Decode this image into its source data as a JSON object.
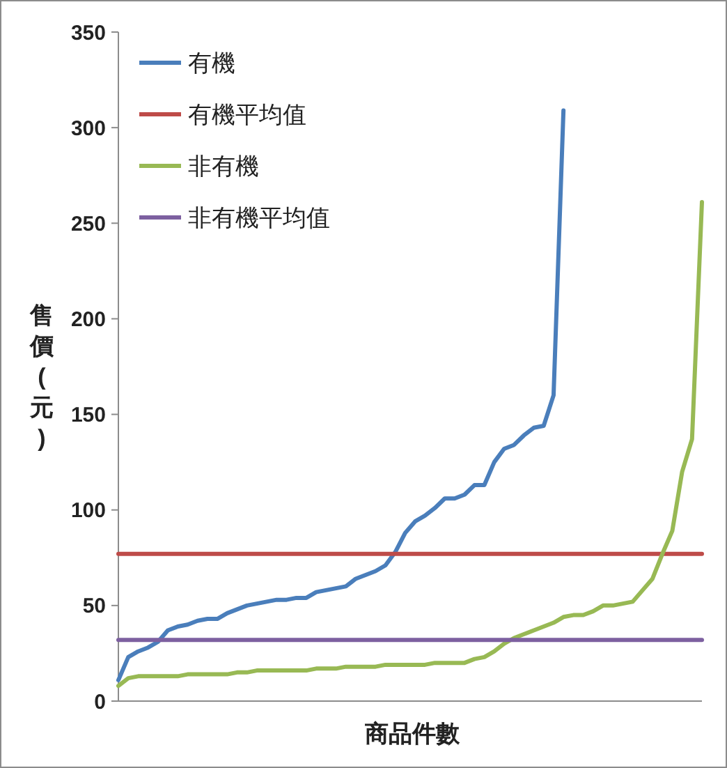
{
  "chart_data": {
    "type": "line",
    "xlabel": "商品件數",
    "ylabel": "售價(元)",
    "categories": [
      null,
      null,
      null,
      null,
      null,
      null,
      null,
      null,
      null,
      null,
      null,
      null,
      null,
      null,
      null,
      null,
      null,
      null,
      null,
      null,
      null,
      null,
      null,
      null,
      null,
      null,
      null,
      null,
      null,
      null,
      null,
      null,
      null,
      null,
      null,
      null,
      null,
      null,
      null,
      null,
      null,
      null,
      null,
      null,
      null,
      null,
      null,
      null,
      null,
      null,
      null,
      null,
      null,
      null,
      null,
      null,
      null,
      null,
      null,
      null
    ],
    "series": [
      {
        "name": "有機",
        "color": "#4a7ebb",
        "values": [
          11,
          23,
          26,
          28,
          31,
          37,
          39,
          40,
          42,
          43,
          43,
          46,
          48,
          50,
          51,
          52,
          53,
          53,
          54,
          54,
          57,
          58,
          59,
          60,
          64,
          66,
          68,
          71,
          78,
          88,
          94,
          97,
          101,
          106,
          106,
          108,
          113,
          113,
          125,
          132,
          134,
          139,
          143,
          144,
          160,
          309,
          null,
          null,
          null,
          null,
          null,
          null,
          null,
          null,
          null,
          null,
          null,
          null,
          null,
          null
        ]
      },
      {
        "name": "有機平均值",
        "color": "#be4b48",
        "values": [
          77,
          77,
          77,
          77,
          77,
          77,
          77,
          77,
          77,
          77,
          77,
          77,
          77,
          77,
          77,
          77,
          77,
          77,
          77,
          77,
          77,
          77,
          77,
          77,
          77,
          77,
          77,
          77,
          77,
          77,
          77,
          77,
          77,
          77,
          77,
          77,
          77,
          77,
          77,
          77,
          77,
          77,
          77,
          77,
          77,
          77,
          77,
          77,
          77,
          77,
          77,
          77,
          77,
          77,
          77,
          77,
          77,
          77,
          77,
          77
        ]
      },
      {
        "name": "非有機",
        "color": "#98b954",
        "values": [
          8,
          12,
          13,
          13,
          13,
          13,
          13,
          14,
          14,
          14,
          14,
          14,
          15,
          15,
          16,
          16,
          16,
          16,
          16,
          16,
          17,
          17,
          17,
          18,
          18,
          18,
          18,
          19,
          19,
          19,
          19,
          19,
          20,
          20,
          20,
          20,
          22,
          23,
          26,
          30,
          33,
          35,
          37,
          39,
          41,
          44,
          45,
          45,
          47,
          50,
          50,
          51,
          52,
          58,
          64,
          77,
          89,
          120,
          137,
          261
        ]
      },
      {
        "name": "非有機平均值",
        "color": "#7d60a0",
        "values": [
          32,
          32,
          32,
          32,
          32,
          32,
          32,
          32,
          32,
          32,
          32,
          32,
          32,
          32,
          32,
          32,
          32,
          32,
          32,
          32,
          32,
          32,
          32,
          32,
          32,
          32,
          32,
          32,
          32,
          32,
          32,
          32,
          32,
          32,
          32,
          32,
          32,
          32,
          32,
          32,
          32,
          32,
          32,
          32,
          32,
          32,
          32,
          32,
          32,
          32,
          32,
          32,
          32,
          32,
          32,
          32,
          32,
          32,
          32,
          32
        ]
      }
    ],
    "ylim": [
      0,
      350
    ],
    "yticks": [
      0,
      50,
      100,
      150,
      200,
      250,
      300,
      350
    ],
    "grid": false,
    "legend": "top left",
    "marker": "none",
    "line_style": "solid"
  }
}
